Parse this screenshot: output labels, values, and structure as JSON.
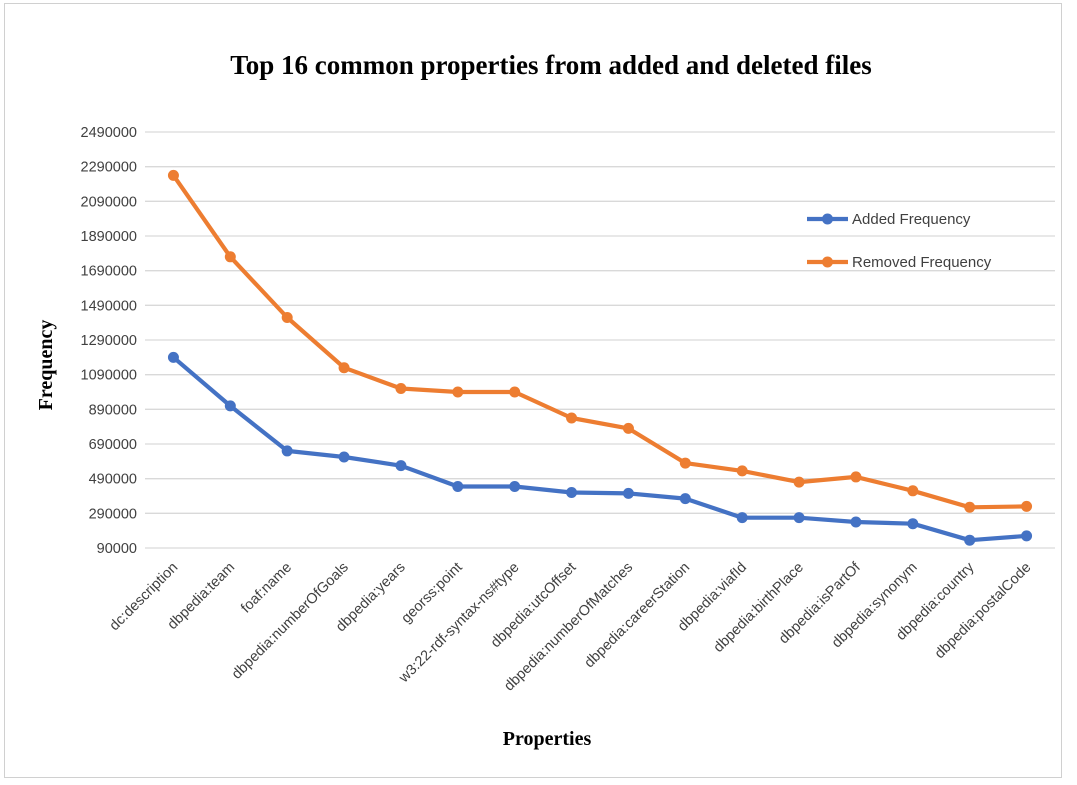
{
  "chart_data": {
    "type": "line",
    "title": "Top 16 common properties from added and deleted files",
    "xlabel": "Properties",
    "ylabel": "Frequency",
    "categories": [
      "dc:description",
      "dbpedia:team",
      "foaf:name",
      "dbpedia:numberOfGoals",
      "dbpedia:years",
      "georss:point",
      "w3:22-rdf-syntax-ns#type",
      "dbpedia:utcOffset",
      "dbpedia:numberOfMatches",
      "dbpedia:careerStation",
      "dbpedia:viafId",
      "dbpedia:birthPlace",
      "dbpedia:isPartOf",
      "dbpedia:synonym",
      "dbpedia:country",
      "dbpedia:postalCode"
    ],
    "series": [
      {
        "name": "Added Frequency",
        "color": "#4472c4",
        "values": [
          1190000,
          910000,
          650000,
          615000,
          565000,
          445000,
          445000,
          410000,
          405000,
          375000,
          265000,
          265000,
          240000,
          230000,
          135000,
          160000
        ]
      },
      {
        "name": "Removed Frequency",
        "color": "#ed7d31",
        "values": [
          2240000,
          1770000,
          1420000,
          1130000,
          1010000,
          990000,
          990000,
          840000,
          780000,
          580000,
          535000,
          470000,
          500000,
          420000,
          325000,
          330000
        ]
      }
    ],
    "yticks": [
      90000,
      290000,
      490000,
      690000,
      890000,
      1090000,
      1290000,
      1490000,
      1690000,
      1890000,
      2090000,
      2290000,
      2490000
    ],
    "ylim": [
      90000,
      2490000
    ],
    "grid": true,
    "legend_position": "top-right"
  }
}
